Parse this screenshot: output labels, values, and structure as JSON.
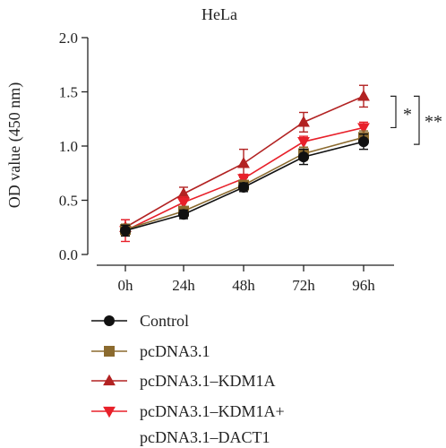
{
  "chart_data": {
    "type": "line",
    "title": "HeLa",
    "xlabel": "",
    "ylabel": "OD value (450 nm)",
    "categories": [
      "0h",
      "24h",
      "48h",
      "72h",
      "96h"
    ],
    "ylim": [
      0,
      2.0
    ],
    "yticks": [
      "0.0",
      "0.5",
      "1.0",
      "1.5",
      "2.0"
    ],
    "grid": false,
    "legend_position": "bottom",
    "series": [
      {
        "name": "Control",
        "values": [
          0.22,
          0.37,
          0.62,
          0.9,
          1.04
        ],
        "errors": [
          0.05,
          0.04,
          0.04,
          0.07,
          0.07
        ],
        "color": "#111111",
        "marker": "circle"
      },
      {
        "name": "pcDNA3.1",
        "values": [
          0.23,
          0.4,
          0.64,
          0.93,
          1.08
        ],
        "errors": [
          0.05,
          0.04,
          0.04,
          0.06,
          0.06
        ],
        "color": "#8B6A2E",
        "marker": "square"
      },
      {
        "name": "pcDNA3.1–KDM1A",
        "values": [
          0.25,
          0.56,
          0.84,
          1.22,
          1.46
        ],
        "errors": [
          0.07,
          0.06,
          0.13,
          0.09,
          0.1
        ],
        "color": "#B22222",
        "marker": "triangle-up"
      },
      {
        "name": "pcDNA3.1–KDM1A+\npcDNA3.1–DACT1",
        "values": [
          0.22,
          0.48,
          0.7,
          1.04,
          1.17
        ],
        "errors": [
          0.1,
          0.05,
          0.04,
          0.05,
          0.05
        ],
        "color": "#E8202A",
        "marker": "triangle-down"
      }
    ],
    "annotations": [
      {
        "text": "*",
        "between": [
          "pcDNA3.1–KDM1A",
          "pcDNA3.1–KDM1A+\npcDNA3.1–DACT1"
        ]
      },
      {
        "text": "**",
        "between": [
          "pcDNA3.1–KDM1A",
          "Control"
        ]
      }
    ]
  }
}
